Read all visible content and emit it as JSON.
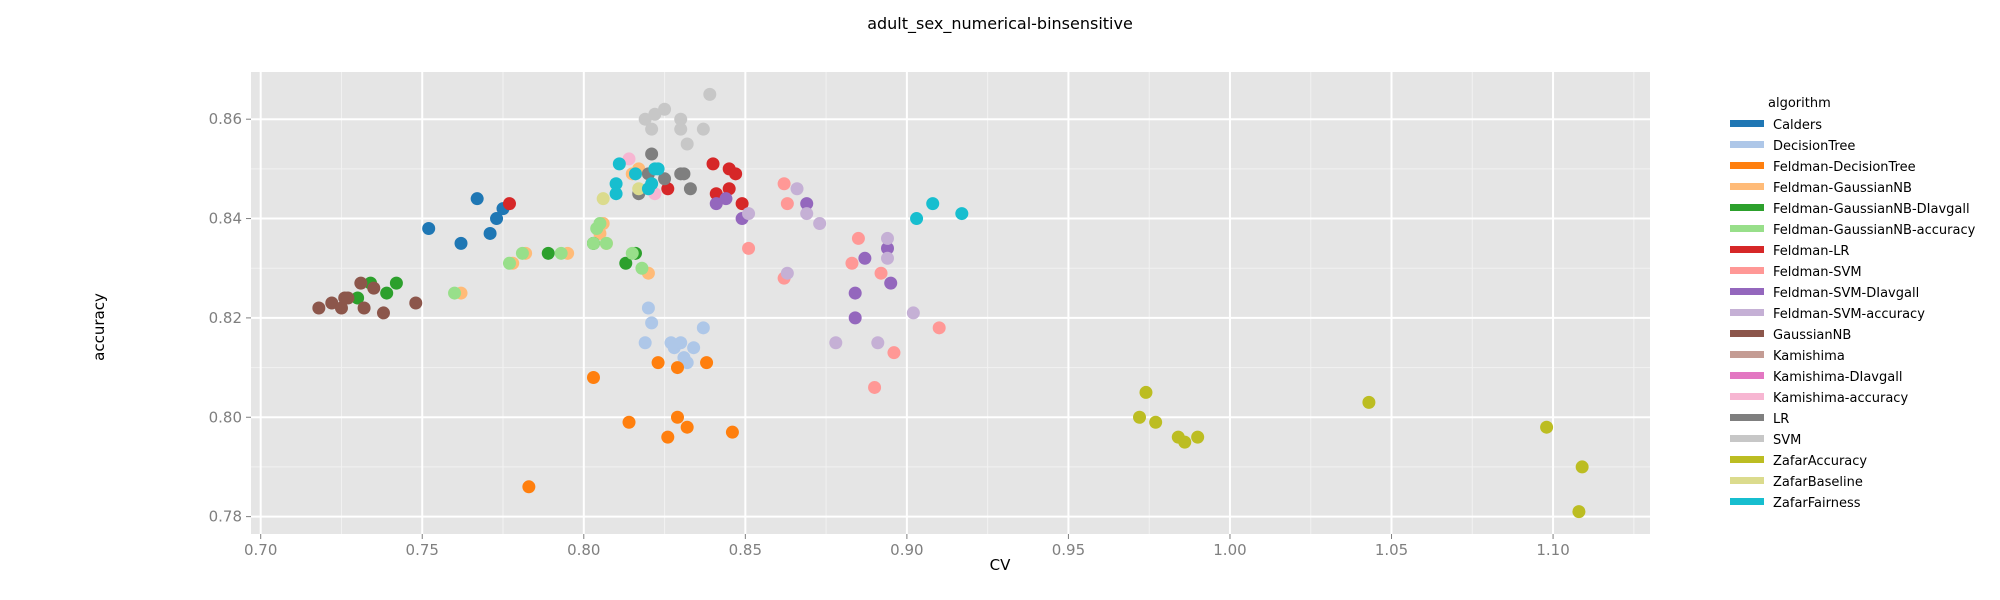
{
  "chart_data": {
    "type": "scatter",
    "title": "adult_sex_numerical-binsensitive",
    "xlabel": "CV",
    "ylabel": "accuracy",
    "xlim": [
      0.697,
      1.13
    ],
    "ylim": [
      0.7765,
      0.8695
    ],
    "xticks": [
      "0.70",
      "0.75",
      "0.80",
      "0.85",
      "0.90",
      "0.95",
      "1.00",
      "1.05",
      "1.10"
    ],
    "yticks": [
      "0.78",
      "0.80",
      "0.82",
      "0.84",
      "0.86"
    ],
    "grid": true,
    "legend_title": "algorithm",
    "legend_position": "right",
    "series": [
      {
        "name": "Calders",
        "color": "#1f77b4",
        "points": [
          [
            0.752,
            0.838
          ],
          [
            0.762,
            0.835
          ],
          [
            0.767,
            0.844
          ],
          [
            0.771,
            0.837
          ],
          [
            0.773,
            0.84
          ],
          [
            0.775,
            0.842
          ]
        ]
      },
      {
        "name": "DecisionTree",
        "color": "#aec7e8",
        "points": [
          [
            0.819,
            0.815
          ],
          [
            0.82,
            0.822
          ],
          [
            0.821,
            0.819
          ],
          [
            0.827,
            0.815
          ],
          [
            0.828,
            0.814
          ],
          [
            0.83,
            0.815
          ],
          [
            0.831,
            0.812
          ],
          [
            0.832,
            0.811
          ],
          [
            0.834,
            0.814
          ],
          [
            0.837,
            0.818
          ]
        ]
      },
      {
        "name": "Feldman-DecisionTree",
        "color": "#ff7f0e",
        "points": [
          [
            0.783,
            0.786
          ],
          [
            0.803,
            0.808
          ],
          [
            0.814,
            0.799
          ],
          [
            0.823,
            0.811
          ],
          [
            0.826,
            0.796
          ],
          [
            0.829,
            0.8
          ],
          [
            0.829,
            0.81
          ],
          [
            0.832,
            0.798
          ],
          [
            0.838,
            0.811
          ],
          [
            0.846,
            0.797
          ]
        ]
      },
      {
        "name": "Feldman-GaussianNB",
        "color": "#ffbb78",
        "points": [
          [
            0.762,
            0.825
          ],
          [
            0.778,
            0.831
          ],
          [
            0.782,
            0.833
          ],
          [
            0.795,
            0.833
          ],
          [
            0.805,
            0.837
          ],
          [
            0.806,
            0.839
          ],
          [
            0.807,
            0.835
          ],
          [
            0.815,
            0.849
          ],
          [
            0.817,
            0.85
          ],
          [
            0.82,
            0.829
          ]
        ]
      },
      {
        "name": "Feldman-GaussianNB-DIavgall",
        "color": "#2ca02c",
        "points": [
          [
            0.73,
            0.824
          ],
          [
            0.734,
            0.827
          ],
          [
            0.739,
            0.825
          ],
          [
            0.742,
            0.827
          ],
          [
            0.789,
            0.833
          ],
          [
            0.803,
            0.835
          ],
          [
            0.813,
            0.831
          ],
          [
            0.816,
            0.833
          ]
        ]
      },
      {
        "name": "Feldman-GaussianNB-accuracy",
        "color": "#98df8a",
        "points": [
          [
            0.76,
            0.825
          ],
          [
            0.777,
            0.831
          ],
          [
            0.781,
            0.833
          ],
          [
            0.793,
            0.833
          ],
          [
            0.803,
            0.835
          ],
          [
            0.804,
            0.838
          ],
          [
            0.805,
            0.839
          ],
          [
            0.807,
            0.835
          ],
          [
            0.815,
            0.833
          ],
          [
            0.818,
            0.83
          ]
        ]
      },
      {
        "name": "Feldman-LR",
        "color": "#d62728",
        "points": [
          [
            0.777,
            0.843
          ],
          [
            0.826,
            0.846
          ],
          [
            0.84,
            0.851
          ],
          [
            0.841,
            0.845
          ],
          [
            0.845,
            0.85
          ],
          [
            0.845,
            0.846
          ],
          [
            0.847,
            0.849
          ],
          [
            0.849,
            0.843
          ]
        ]
      },
      {
        "name": "Feldman-SVM",
        "color": "#ff9896",
        "points": [
          [
            0.851,
            0.834
          ],
          [
            0.862,
            0.847
          ],
          [
            0.862,
            0.828
          ],
          [
            0.863,
            0.843
          ],
          [
            0.883,
            0.831
          ],
          [
            0.885,
            0.836
          ],
          [
            0.89,
            0.806
          ],
          [
            0.892,
            0.829
          ],
          [
            0.896,
            0.813
          ],
          [
            0.91,
            0.818
          ]
        ]
      },
      {
        "name": "Feldman-SVM-DIavgall",
        "color": "#9467bd",
        "points": [
          [
            0.841,
            0.843
          ],
          [
            0.844,
            0.844
          ],
          [
            0.849,
            0.84
          ],
          [
            0.869,
            0.843
          ],
          [
            0.884,
            0.825
          ],
          [
            0.884,
            0.82
          ],
          [
            0.887,
            0.832
          ],
          [
            0.894,
            0.834
          ],
          [
            0.895,
            0.827
          ]
        ]
      },
      {
        "name": "Feldman-SVM-accuracy",
        "color": "#c5b0d5",
        "points": [
          [
            0.851,
            0.841
          ],
          [
            0.863,
            0.829
          ],
          [
            0.866,
            0.846
          ],
          [
            0.869,
            0.841
          ],
          [
            0.873,
            0.839
          ],
          [
            0.878,
            0.815
          ],
          [
            0.891,
            0.815
          ],
          [
            0.894,
            0.836
          ],
          [
            0.894,
            0.832
          ],
          [
            0.902,
            0.821
          ]
        ]
      },
      {
        "name": "GaussianNB",
        "color": "#8c564b",
        "points": [
          [
            0.718,
            0.822
          ],
          [
            0.722,
            0.823
          ],
          [
            0.725,
            0.822
          ],
          [
            0.726,
            0.824
          ],
          [
            0.727,
            0.824
          ],
          [
            0.731,
            0.827
          ],
          [
            0.732,
            0.822
          ],
          [
            0.735,
            0.826
          ],
          [
            0.738,
            0.821
          ],
          [
            0.748,
            0.823
          ]
        ]
      },
      {
        "name": "Kamishima",
        "color": "#c49c94",
        "points": []
      },
      {
        "name": "Kamishima-DIavgall",
        "color": "#e377c2",
        "points": []
      },
      {
        "name": "Kamishima-accuracy",
        "color": "#f7b6d2",
        "points": [
          [
            0.814,
            0.852
          ],
          [
            0.822,
            0.845
          ]
        ]
      },
      {
        "name": "LR",
        "color": "#7f7f7f",
        "points": [
          [
            0.817,
            0.845
          ],
          [
            0.82,
            0.849
          ],
          [
            0.821,
            0.853
          ],
          [
            0.825,
            0.848
          ],
          [
            0.83,
            0.849
          ],
          [
            0.831,
            0.849
          ],
          [
            0.833,
            0.846
          ]
        ]
      },
      {
        "name": "SVM",
        "color": "#c7c7c7",
        "points": [
          [
            0.819,
            0.86
          ],
          [
            0.821,
            0.858
          ],
          [
            0.822,
            0.861
          ],
          [
            0.825,
            0.862
          ],
          [
            0.83,
            0.86
          ],
          [
            0.83,
            0.858
          ],
          [
            0.832,
            0.855
          ],
          [
            0.837,
            0.858
          ],
          [
            0.839,
            0.865
          ]
        ]
      },
      {
        "name": "ZafarAccuracy",
        "color": "#bcbd22",
        "points": [
          [
            0.972,
            0.8
          ],
          [
            0.974,
            0.805
          ],
          [
            0.977,
            0.799
          ],
          [
            0.984,
            0.796
          ],
          [
            0.986,
            0.795
          ],
          [
            0.99,
            0.796
          ],
          [
            1.043,
            0.803
          ],
          [
            1.098,
            0.798
          ],
          [
            1.108,
            0.781
          ],
          [
            1.109,
            0.79
          ]
        ]
      },
      {
        "name": "ZafarBaseline",
        "color": "#dbdb8d",
        "points": [
          [
            0.806,
            0.844
          ],
          [
            0.817,
            0.846
          ]
        ]
      },
      {
        "name": "ZafarFairness",
        "color": "#17becf",
        "points": [
          [
            0.81,
            0.847
          ],
          [
            0.81,
            0.845
          ],
          [
            0.811,
            0.851
          ],
          [
            0.816,
            0.849
          ],
          [
            0.82,
            0.846
          ],
          [
            0.821,
            0.847
          ],
          [
            0.822,
            0.85
          ],
          [
            0.823,
            0.85
          ],
          [
            0.903,
            0.84
          ],
          [
            0.908,
            0.843
          ],
          [
            0.917,
            0.841
          ]
        ]
      }
    ]
  }
}
